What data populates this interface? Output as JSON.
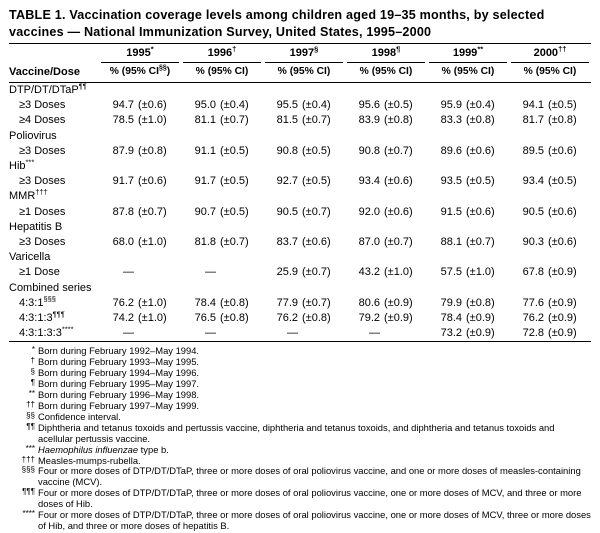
{
  "title": "TABLE 1. Vaccination coverage levels among children aged 19–35 months, by selected vaccines — National Immunization Survey, United States, 1995–2000",
  "table": {
    "row_header_label": "Vaccine/Dose",
    "columns": [
      {
        "year": "1995",
        "year_sup": "*",
        "ci_pre": "% (95% CI",
        "ci_sup": "§§",
        "ci_post": ")"
      },
      {
        "year": "1996",
        "year_sup": "†",
        "ci_pre": "% (95% CI)",
        "ci_sup": "",
        "ci_post": ""
      },
      {
        "year": "1997",
        "year_sup": "§",
        "ci_pre": "% (95% CI)",
        "ci_sup": "",
        "ci_post": ""
      },
      {
        "year": "1998",
        "year_sup": "¶",
        "ci_pre": "% (95% CI)",
        "ci_sup": "",
        "ci_post": ""
      },
      {
        "year": "1999",
        "year_sup": "**",
        "ci_pre": "% (95% CI)",
        "ci_sup": "",
        "ci_post": ""
      },
      {
        "year": "2000",
        "year_sup": "††",
        "ci_pre": "% (95% CI)",
        "ci_sup": "",
        "ci_post": ""
      }
    ],
    "rows": [
      {
        "type": "section",
        "label": "DTP/DT/DTaP",
        "sup": "¶¶"
      },
      {
        "type": "data",
        "label": "≥3 Doses",
        "sup": "",
        "cells": [
          {
            "v": "94.7",
            "ci": "(±0.6)"
          },
          {
            "v": "95.0",
            "ci": "(±0.4)"
          },
          {
            "v": "95.5",
            "ci": "(±0.4)"
          },
          {
            "v": "95.6",
            "ci": "(±0.5)"
          },
          {
            "v": "95.9",
            "ci": "(±0.4)"
          },
          {
            "v": "94.1",
            "ci": "(±0.5)"
          }
        ]
      },
      {
        "type": "data",
        "label": "≥4 Doses",
        "sup": "",
        "cells": [
          {
            "v": "78.5",
            "ci": "(±1.0)"
          },
          {
            "v": "81.1",
            "ci": "(±0.7)"
          },
          {
            "v": "81.5",
            "ci": "(±0.7)"
          },
          {
            "v": "83.9",
            "ci": "(±0.8)"
          },
          {
            "v": "83.3",
            "ci": "(±0.8)"
          },
          {
            "v": "81.7",
            "ci": "(±0.8)"
          }
        ]
      },
      {
        "type": "section",
        "label": "Poliovirus",
        "sup": ""
      },
      {
        "type": "data",
        "label": "≥3 Doses",
        "sup": "",
        "cells": [
          {
            "v": "87.9",
            "ci": "(±0.8)"
          },
          {
            "v": "91.1",
            "ci": "(±0.5)"
          },
          {
            "v": "90.8",
            "ci": "(±0.5)"
          },
          {
            "v": "90.8",
            "ci": "(±0.7)"
          },
          {
            "v": "89.6",
            "ci": "(±0.6)"
          },
          {
            "v": "89.5",
            "ci": "(±0.6)"
          }
        ]
      },
      {
        "type": "section",
        "label": "Hib",
        "sup": "***"
      },
      {
        "type": "data",
        "label": "≥3 Doses",
        "sup": "",
        "cells": [
          {
            "v": "91.7",
            "ci": "(±0.6)"
          },
          {
            "v": "91.7",
            "ci": "(±0.5)"
          },
          {
            "v": "92.7",
            "ci": "(±0.5)"
          },
          {
            "v": "93.4",
            "ci": "(±0.6)"
          },
          {
            "v": "93.5",
            "ci": "(±0.5)"
          },
          {
            "v": "93.4",
            "ci": "(±0.5)"
          }
        ]
      },
      {
        "type": "section",
        "label": "MMR",
        "sup": "†††"
      },
      {
        "type": "data",
        "label": "≥1 Doses",
        "sup": "",
        "cells": [
          {
            "v": "87.8",
            "ci": "(±0.7)"
          },
          {
            "v": "90.7",
            "ci": "(±0.5)"
          },
          {
            "v": "90.5",
            "ci": "(±0.7)"
          },
          {
            "v": "92.0",
            "ci": "(±0.6)"
          },
          {
            "v": "91.5",
            "ci": "(±0.6)"
          },
          {
            "v": "90.5",
            "ci": "(±0.6)"
          }
        ]
      },
      {
        "type": "section",
        "label": "Hepatitis B",
        "sup": ""
      },
      {
        "type": "data",
        "label": "≥3 Doses",
        "sup": "",
        "cells": [
          {
            "v": "68.0",
            "ci": "(±1.0)"
          },
          {
            "v": "81.8",
            "ci": "(±0.7)"
          },
          {
            "v": "83.7",
            "ci": "(±0.6)"
          },
          {
            "v": "87.0",
            "ci": "(±0.7)"
          },
          {
            "v": "88.1",
            "ci": "(±0.7)"
          },
          {
            "v": "90.3",
            "ci": "(±0.6)"
          }
        ]
      },
      {
        "type": "section",
        "label": "Varicella",
        "sup": ""
      },
      {
        "type": "data",
        "label": "≥1 Dose",
        "sup": "",
        "cells": [
          {
            "v": "—",
            "ci": ""
          },
          {
            "v": "—",
            "ci": ""
          },
          {
            "v": "25.9",
            "ci": "(±0.7)"
          },
          {
            "v": "43.2",
            "ci": "(±1.0)"
          },
          {
            "v": "57.5",
            "ci": "(±1.0)"
          },
          {
            "v": "67.8",
            "ci": "(±0.9)"
          }
        ]
      },
      {
        "type": "section",
        "label": "Combined series",
        "sup": ""
      },
      {
        "type": "data",
        "label": "4:3:1",
        "sup": "§§§",
        "cells": [
          {
            "v": "76.2",
            "ci": "(±1.0)"
          },
          {
            "v": "78.4",
            "ci": "(±0.8)"
          },
          {
            "v": "77.9",
            "ci": "(±0.7)"
          },
          {
            "v": "80.6",
            "ci": "(±0.9)"
          },
          {
            "v": "79.9",
            "ci": "(±0.8)"
          },
          {
            "v": "77.6",
            "ci": "(±0.9)"
          }
        ]
      },
      {
        "type": "data",
        "label": "4:3:1:3",
        "sup": "¶¶¶",
        "cells": [
          {
            "v": "74.2",
            "ci": "(±1.0)"
          },
          {
            "v": "76.5",
            "ci": "(±0.8)"
          },
          {
            "v": "76.2",
            "ci": "(±0.8)"
          },
          {
            "v": "79.2",
            "ci": "(±0.9)"
          },
          {
            "v": "78.4",
            "ci": "(±0.9)"
          },
          {
            "v": "76.2",
            "ci": "(±0.9)"
          }
        ]
      },
      {
        "type": "data",
        "label": "4:3:1:3:3",
        "sup": "****",
        "cells": [
          {
            "v": "—",
            "ci": ""
          },
          {
            "v": "—",
            "ci": ""
          },
          {
            "v": "—",
            "ci": ""
          },
          {
            "v": "—",
            "ci": ""
          },
          {
            "v": "73.2",
            "ci": "(±0.9)"
          },
          {
            "v": "72.8",
            "ci": "(±0.9)"
          }
        ]
      }
    ]
  },
  "footnotes": [
    {
      "marker": "*",
      "text": "Born during February 1992–May 1994."
    },
    {
      "marker": "†",
      "text": "Born during February 1993–May 1995."
    },
    {
      "marker": "§",
      "text": "Born during February 1994–May 1996."
    },
    {
      "marker": "¶",
      "text": "Born during February 1995–May 1997."
    },
    {
      "marker": "**",
      "text": "Born during February 1996–May 1998."
    },
    {
      "marker": "††",
      "text": "Born during February 1997–May 1999."
    },
    {
      "marker": "§§",
      "text": "Confidence interval."
    },
    {
      "marker": "¶¶",
      "text": "Diphtheria and tetanus toxoids and pertussis vaccine, diphtheria and tetanus toxoids, and diphtheria and tetanus toxoids and acellular pertussis vaccine."
    },
    {
      "marker": "***",
      "text": "",
      "italic": "Haemophilus influenzae",
      "text_after": " type b."
    },
    {
      "marker": "†††",
      "text": "Measles-mumps-rubella."
    },
    {
      "marker": "§§§",
      "text": "Four or more doses of DTP/DT/DTaP, three or more doses of oral poliovirus vaccine, and one or more doses of measles-containing vaccine (MCV)."
    },
    {
      "marker": "¶¶¶",
      "text": "Four or more doses of DTP/DT/DTaP, three or more doses of oral poliovirus vaccine, one or more doses of MCV, and three or more doses of Hib."
    },
    {
      "marker": "****",
      "text": "Four or more doses of DTP/DT/DTaP, three or more doses of oral poliovirus vaccine, one or more doses of MCV, three or more doses of Hib, and three or more doses of hepatitis B."
    }
  ]
}
